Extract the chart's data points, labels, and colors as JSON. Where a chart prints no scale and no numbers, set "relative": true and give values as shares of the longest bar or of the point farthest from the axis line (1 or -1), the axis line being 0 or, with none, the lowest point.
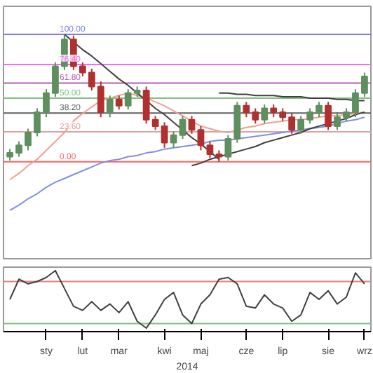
{
  "chart_data": [
    {
      "type": "candlestick",
      "tick_labels": false,
      "grid": false,
      "ylim": [
        -76,
        122
      ],
      "categories": [
        null,
        null,
        null,
        null,
        null,
        null,
        null,
        null,
        null,
        null,
        null,
        null,
        null,
        null,
        null,
        null,
        null,
        null,
        null,
        null,
        null,
        null,
        null,
        null,
        null,
        null,
        null,
        null,
        null,
        null,
        null,
        null,
        null,
        null,
        null,
        null,
        null,
        null,
        null,
        null
      ],
      "ohlc": [
        [
          4,
          10,
          1,
          7
        ],
        [
          7,
          16,
          4,
          13
        ],
        [
          13,
          26,
          9,
          23
        ],
        [
          23,
          42,
          20,
          39
        ],
        [
          39,
          57,
          35,
          54
        ],
        [
          54,
          78,
          51,
          75
        ],
        [
          75,
          100,
          72,
          96
        ],
        [
          96,
          99,
          72,
          75
        ],
        [
          75,
          78,
          67,
          70
        ],
        [
          70,
          73,
          56,
          59
        ],
        [
          59,
          63,
          35,
          39
        ],
        [
          39,
          52,
          35,
          49
        ],
        [
          49,
          52,
          41,
          44
        ],
        [
          44,
          57,
          41,
          54
        ],
        [
          54,
          59,
          51,
          56
        ],
        [
          56,
          59,
          30,
          33
        ],
        [
          33,
          36,
          25,
          28
        ],
        [
          28,
          31,
          11,
          15
        ],
        [
          15,
          24,
          11,
          21
        ],
        [
          21,
          36,
          18,
          33
        ],
        [
          33,
          36,
          22,
          25
        ],
        [
          25,
          28,
          9,
          13
        ],
        [
          13,
          16,
          3,
          6
        ],
        [
          6,
          9,
          0,
          4
        ],
        [
          4,
          21,
          1,
          18
        ],
        [
          18,
          47,
          15,
          44
        ],
        [
          44,
          47,
          35,
          39
        ],
        [
          39,
          42,
          30,
          33
        ],
        [
          33,
          45,
          30,
          42
        ],
        [
          42,
          45,
          35,
          39
        ],
        [
          39,
          42,
          32,
          35
        ],
        [
          35,
          38,
          22,
          25
        ],
        [
          25,
          36,
          22,
          33
        ],
        [
          33,
          42,
          30,
          39
        ],
        [
          39,
          47,
          35,
          44
        ],
        [
          44,
          47,
          25,
          28
        ],
        [
          28,
          39,
          25,
          35
        ],
        [
          35,
          42,
          32,
          39
        ],
        [
          39,
          57,
          35,
          54
        ],
        [
          54,
          70,
          51,
          67
        ]
      ],
      "colors": [
        "#5f8f5f",
        "#5f8f5f",
        "#5f8f5f",
        "#5f8f5f",
        "#5f8f5f",
        "#5f8f5f",
        "#5f8f5f",
        "#b03030",
        "#b03030",
        "#b03030",
        "#b03030",
        "#5f8f5f",
        "#b03030",
        "#5f8f5f",
        "#5f8f5f",
        "#b03030",
        "#b03030",
        "#b03030",
        "#5f8f5f",
        "#5f8f5f",
        "#b03030",
        "#b03030",
        "#b03030",
        "#b03030",
        "#5f8f5f",
        "#5f8f5f",
        "#b03030",
        "#b03030",
        "#5f8f5f",
        "#b03030",
        "#b03030",
        "#b03030",
        "#5f8f5f",
        "#5f8f5f",
        "#5f8f5f",
        "#b03030",
        "#5f8f5f",
        "#5f8f5f",
        "#5f8f5f",
        "#5f8f5f"
      ],
      "series": [
        {
          "type": "line",
          "color": "#f0a090",
          "values": [
            -14,
            -9,
            -3,
            2,
            9,
            16,
            23,
            32,
            38,
            43,
            48,
            50,
            52,
            54,
            52,
            50,
            47,
            44,
            40,
            36,
            32,
            28,
            26,
            24,
            23,
            25,
            27,
            28,
            30,
            31,
            32,
            33,
            33,
            34,
            35,
            36,
            36,
            37,
            38,
            39
          ]
        },
        {
          "type": "line",
          "color": "#8090e0",
          "values": [
            -38,
            -34,
            -29,
            -25,
            -20,
            -16,
            -13,
            -10,
            -7,
            -4,
            -1,
            1,
            2,
            4,
            5,
            7,
            8,
            10,
            11,
            12,
            13,
            14,
            16,
            17,
            17,
            18,
            19,
            20,
            21,
            22,
            23,
            24,
            25,
            26,
            27,
            28,
            30,
            32,
            33,
            35
          ]
        },
        {
          "type": "line",
          "color": "#404040",
          "values": [
            null,
            null,
            null,
            null,
            null,
            null,
            100,
            94,
            88,
            83,
            77,
            71,
            65,
            60,
            54,
            48,
            42,
            37,
            31,
            25,
            19,
            14,
            8,
            2,
            null,
            null,
            null,
            null,
            null,
            null,
            null,
            null,
            null,
            null,
            null,
            null,
            null,
            null,
            null,
            null
          ]
        },
        {
          "type": "line",
          "color": "#404040",
          "values": [
            null,
            null,
            null,
            null,
            null,
            null,
            null,
            null,
            null,
            null,
            null,
            null,
            null,
            null,
            null,
            null,
            null,
            null,
            null,
            null,
            null,
            null,
            null,
            54,
            54,
            53,
            53,
            52,
            52,
            52,
            51,
            51,
            51,
            50,
            50,
            50,
            49,
            49,
            48,
            48
          ]
        },
        {
          "type": "line",
          "color": "#404040",
          "values": [
            null,
            null,
            null,
            null,
            null,
            null,
            null,
            null,
            null,
            null,
            null,
            null,
            null,
            null,
            null,
            null,
            null,
            null,
            null,
            null,
            -3,
            -1,
            2,
            4,
            6,
            8,
            10,
            12,
            15,
            17,
            19,
            21,
            23,
            26,
            28,
            30,
            32,
            34,
            37,
            39
          ]
        }
      ],
      "ref_lines": [
        {
          "axis": "y",
          "value": 100,
          "label": "100.00",
          "color": "#7b7bff"
        },
        {
          "axis": "y",
          "value": 76.4,
          "label": "76.40",
          "color": "#ff66ff"
        },
        {
          "axis": "y",
          "value": 61.8,
          "label": "61.80",
          "color": "#b060b0"
        },
        {
          "axis": "y",
          "value": 50,
          "label": "50.00",
          "color": "#80c080"
        },
        {
          "axis": "y",
          "value": 38.2,
          "label": "38.20",
          "color": "#606060"
        },
        {
          "axis": "y",
          "value": 23.6,
          "label": "23.60",
          "color": "#e0a0a0"
        },
        {
          "axis": "y",
          "value": 0,
          "label": "0.00",
          "color": "#ff6060"
        }
      ]
    },
    {
      "type": "line",
      "relative": true,
      "grid": false,
      "xlabel": "2014",
      "categories": [
        null,
        null,
        null,
        null,
        "sty",
        null,
        null,
        null,
        "lut",
        null,
        null,
        null,
        "mar",
        null,
        null,
        null,
        null,
        "kwi",
        null,
        null,
        null,
        "maj",
        null,
        null,
        null,
        null,
        "cze",
        null,
        null,
        null,
        "lip",
        null,
        null,
        null,
        null,
        "sie",
        null,
        null,
        null,
        "wrz"
      ],
      "series": [
        {
          "color": "#404040",
          "values": [
            0.5,
            0.85,
            0.77,
            0.81,
            0.88,
            1.0,
            0.69,
            0.38,
            0.31,
            0.46,
            0.31,
            0.42,
            0.27,
            0.46,
            0.12,
            0.0,
            0.23,
            0.5,
            0.62,
            0.23,
            0.08,
            0.42,
            0.58,
            0.85,
            0.88,
            0.77,
            0.38,
            0.35,
            0.58,
            0.42,
            0.35,
            0.12,
            0.23,
            0.62,
            0.5,
            0.65,
            0.42,
            0.54,
            0.96,
            0.77
          ]
        }
      ],
      "ref_lines": [
        {
          "axis": "y",
          "value": 0.81,
          "color": "#f08080"
        },
        {
          "axis": "y",
          "value": 0.08,
          "color": "#80c080"
        }
      ]
    }
  ]
}
